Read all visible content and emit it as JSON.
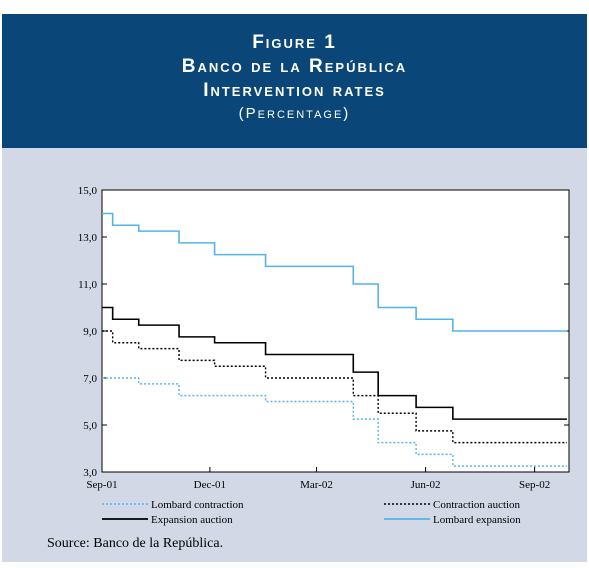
{
  "header": {
    "figure": "Figure 1",
    "title": "Banco de la República",
    "subtitle": "Intervention rates",
    "unit": "(Percentage)"
  },
  "source": "Source: Banco de la República.",
  "colors": {
    "header_bg": "#0a4778",
    "panel_bg": "#d2d8e6",
    "lombard_expansion": "#55b4e6",
    "lombard_contraction": "#55b4e6",
    "expansion_auction": "#000000",
    "contraction_auction": "#000000"
  },
  "chart_data": {
    "type": "line",
    "step": true,
    "x_start": "2001-09-01",
    "x_end": "2002-09-30",
    "xticks": [
      {
        "date": "2001-09-01",
        "label": "Sep-01"
      },
      {
        "date": "2001-12-01",
        "label": "Dec-01"
      },
      {
        "date": "2002-03-01",
        "label": "Mar-02"
      },
      {
        "date": "2002-06-01",
        "label": "Jun-02"
      },
      {
        "date": "2002-09-01",
        "label": "Sep-02"
      }
    ],
    "ylim": [
      3,
      15
    ],
    "yticks": [
      "3,0",
      "5,0",
      "7,0",
      "9,0",
      "11,0",
      "13,0",
      "15,0"
    ],
    "legend_position": "bottom",
    "series": [
      {
        "name": "Lombard contraction",
        "style": "dotted",
        "color": "#55b4e6",
        "steps": [
          [
            "2001-09-01",
            7.0
          ],
          [
            "2001-10-02",
            6.75
          ],
          [
            "2001-11-05",
            6.25
          ],
          [
            "2002-01-17",
            6.0
          ],
          [
            "2002-04-01",
            5.25
          ],
          [
            "2002-04-22",
            4.25
          ],
          [
            "2002-05-24",
            3.75
          ],
          [
            "2002-06-24",
            3.25
          ]
        ]
      },
      {
        "name": "Contraction auction",
        "style": "dotted",
        "color": "#000000",
        "steps": [
          [
            "2001-09-01",
            9.0
          ],
          [
            "2001-09-10",
            8.5
          ],
          [
            "2001-10-02",
            8.25
          ],
          [
            "2001-11-05",
            7.75
          ],
          [
            "2001-12-05",
            7.5
          ],
          [
            "2002-01-17",
            7.0
          ],
          [
            "2002-04-01",
            6.25
          ],
          [
            "2002-04-22",
            5.5
          ],
          [
            "2002-05-24",
            4.75
          ],
          [
            "2002-06-24",
            4.25
          ]
        ]
      },
      {
        "name": "Expansion auction",
        "style": "solid",
        "color": "#000000",
        "steps": [
          [
            "2001-09-01",
            10.0
          ],
          [
            "2001-09-10",
            9.5
          ],
          [
            "2001-10-02",
            9.25
          ],
          [
            "2001-11-05",
            8.75
          ],
          [
            "2001-12-05",
            8.5
          ],
          [
            "2002-01-17",
            8.0
          ],
          [
            "2002-04-01",
            7.25
          ],
          [
            "2002-04-22",
            6.25
          ],
          [
            "2002-05-24",
            5.75
          ],
          [
            "2002-06-24",
            5.25
          ]
        ]
      },
      {
        "name": "Lombard expansion",
        "style": "solid",
        "color": "#55b4e6",
        "steps": [
          [
            "2001-09-01",
            14.0
          ],
          [
            "2001-09-10",
            13.5
          ],
          [
            "2001-10-02",
            13.25
          ],
          [
            "2001-11-05",
            12.75
          ],
          [
            "2001-12-05",
            12.25
          ],
          [
            "2002-01-17",
            11.75
          ],
          [
            "2002-04-01",
            11.0
          ],
          [
            "2002-04-22",
            10.0
          ],
          [
            "2002-05-24",
            9.5
          ],
          [
            "2002-06-24",
            9.0
          ]
        ]
      }
    ]
  }
}
